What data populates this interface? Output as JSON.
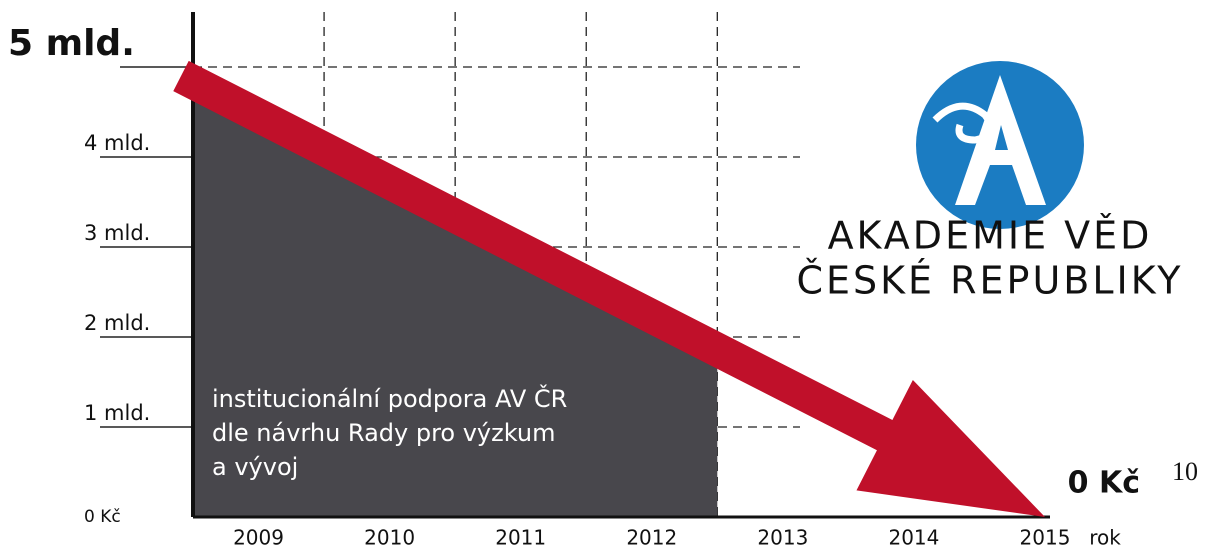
{
  "chart_data": {
    "type": "area",
    "x": [
      2008.5,
      2012.5
    ],
    "series": [
      {
        "values": [
          4.7,
          1.7
        ],
        "color": "#48474c"
      }
    ],
    "area_label": [
      "institucionální podpora AV ČR",
      "dle návrhu Rady pro výzkum",
      "a vývoj"
    ],
    "arrow": {
      "x": [
        2008.5,
        2015
      ],
      "values": [
        4.9,
        0
      ],
      "color": "#c0102a"
    },
    "end_label": "0 Kč",
    "xlim": [
      2008.5,
      2015
    ],
    "xticks": [
      2009,
      2010,
      2011,
      2012,
      2013,
      2014,
      2015
    ],
    "xgrid": [
      2009.5,
      2010.5,
      2011.5,
      2012.5
    ],
    "xlabel": "rok",
    "ylim": [
      0,
      5
    ],
    "yticks": [
      {
        "value": 0,
        "label": "0 Kč"
      },
      {
        "value": 1,
        "label": "1 mld."
      },
      {
        "value": 2,
        "label": "2 mld."
      },
      {
        "value": 3,
        "label": "3 mld."
      },
      {
        "value": 4,
        "label": "4 mld."
      },
      {
        "value": 5,
        "label": "5 mld."
      }
    ],
    "grid": true,
    "logo": {
      "line1": "AKADEMIE VĚD",
      "line2": "ČESKÉ REPUBLIKY",
      "color": "#1b7cc2"
    },
    "page_number": "10"
  }
}
